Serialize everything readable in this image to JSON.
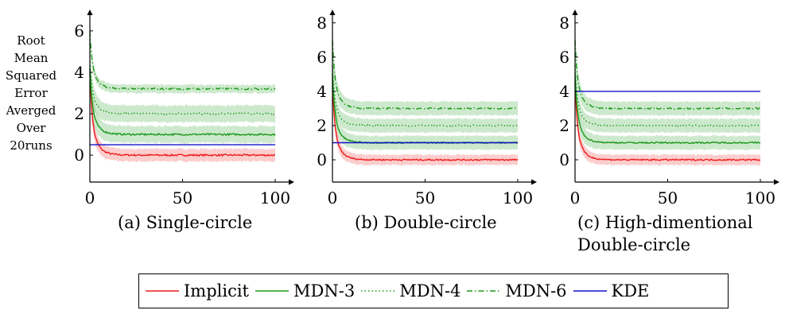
{
  "y_axis_label_lines": [
    "Root",
    "Mean",
    "Squared",
    "Error",
    "Averged",
    "Over",
    "20runs"
  ],
  "legend": [
    {
      "name": "Implicit",
      "color": "#ee1c1c",
      "dash": "solid"
    },
    {
      "name": "MDN-3",
      "color": "#1a9a1a",
      "dash": "solid"
    },
    {
      "name": "MDN-4",
      "color": "#1a9a1a",
      "dash": "dotted"
    },
    {
      "name": "MDN-6",
      "color": "#1a9a1a",
      "dash": "dashdot"
    },
    {
      "name": "KDE",
      "color": "#1010cc",
      "dash": "solid"
    }
  ],
  "chart_data": [
    {
      "type": "line",
      "title": "(a) Single-circle",
      "xlim": [
        0,
        100
      ],
      "ylim": [
        -1.3,
        6.8
      ],
      "xticks": [
        0,
        50,
        100
      ],
      "yticks": [
        0,
        2,
        4,
        6
      ],
      "series": [
        {
          "name": "Implicit",
          "start": 4.0,
          "end": 0.0,
          "band": 0.3
        },
        {
          "name": "MDN-3",
          "start": 4.2,
          "end": 1.0,
          "band": 0.4
        },
        {
          "name": "MDN-4",
          "start": 4.5,
          "end": 2.0,
          "band": 0.4
        },
        {
          "name": "MDN-6",
          "start": 6.0,
          "end": 3.2,
          "band": 0.2
        },
        {
          "name": "KDE",
          "start": 0.5,
          "end": 0.5,
          "band": 0
        }
      ]
    },
    {
      "type": "line",
      "title": "(b) Double-circle",
      "xlim": [
        0,
        100
      ],
      "ylim": [
        -1.3,
        8.5
      ],
      "xticks": [
        0,
        50,
        100
      ],
      "yticks": [
        0,
        2,
        4,
        6,
        8
      ],
      "series": [
        {
          "name": "Implicit",
          "start": 4.5,
          "end": 0.0,
          "band": 0.3
        },
        {
          "name": "MDN-3",
          "start": 5.0,
          "end": 1.0,
          "band": 0.4
        },
        {
          "name": "MDN-4",
          "start": 5.5,
          "end": 2.0,
          "band": 0.4
        },
        {
          "name": "MDN-6",
          "start": 7.0,
          "end": 3.0,
          "band": 0.4
        },
        {
          "name": "KDE",
          "start": 1.0,
          "end": 1.0,
          "band": 0
        }
      ]
    },
    {
      "type": "line",
      "title": "(c) High-dimentional Double-circle",
      "xlim": [
        0,
        100
      ],
      "ylim": [
        -1.3,
        8.5
      ],
      "xticks": [
        0,
        50,
        100
      ],
      "yticks": [
        0,
        2,
        4,
        6,
        8
      ],
      "series": [
        {
          "name": "Implicit",
          "start": 4.5,
          "end": 0.0,
          "band": 0.3
        },
        {
          "name": "MDN-3",
          "start": 5.0,
          "end": 1.0,
          "band": 0.4
        },
        {
          "name": "MDN-4",
          "start": 5.5,
          "end": 2.0,
          "band": 0.4
        },
        {
          "name": "MDN-6",
          "start": 7.0,
          "end": 3.0,
          "band": 0.4
        },
        {
          "name": "KDE",
          "start": 4.0,
          "end": 4.0,
          "band": 0
        }
      ]
    }
  ]
}
